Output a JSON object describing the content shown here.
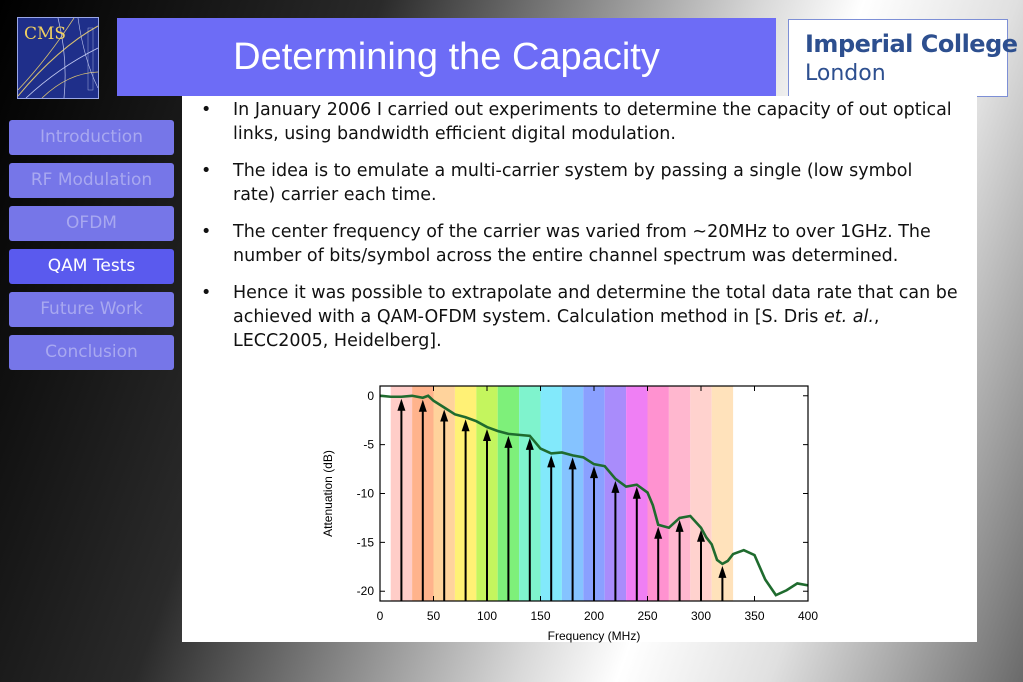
{
  "logos": {
    "cms_text": "CMS",
    "college_line1": "Imperial College",
    "college_line2": "London"
  },
  "slide": {
    "title": "Determining the Capacity",
    "bullet_glyph": "•",
    "bullets": [
      "In January 2006 I carried out experiments to determine the capacity of out optical links, using bandwidth efficient digital modulation.",
      "The idea is to emulate a multi-carrier system by passing a single (low symbol rate) carrier each time.",
      "The center frequency of the carrier was varied from ~20MHz to over 1GHz. The number of bits/symbol across the entire channel spectrum was determined."
    ],
    "last_bullet": {
      "before": "Hence it was possible to extrapolate and determine the total data rate that can be achieved with a QAM-OFDM system. Calculation method in [S. Dris ",
      "italic": "et. al.",
      "after": ", LECC2005, Heidelberg]."
    }
  },
  "nav": {
    "active": "QAM Tests",
    "items": [
      "Introduction",
      "RF Modulation",
      "OFDM",
      "QAM Tests",
      "Future Work",
      "Conclusion"
    ]
  },
  "chart_data": {
    "type": "line",
    "xlabel": "Frequency (MHz)",
    "ylabel": "Attenuation (dB)",
    "xlim": [
      0,
      400
    ],
    "ylim": [
      -21,
      1
    ],
    "xticks": [
      0,
      50,
      100,
      150,
      200,
      250,
      300,
      350,
      400
    ],
    "yticks": [
      0,
      -5,
      -10,
      -15,
      -20
    ],
    "line_color": "#1f6b2e",
    "series": [
      {
        "x": [
          0,
          10,
          20,
          30,
          40,
          45,
          50,
          60,
          70,
          80,
          90,
          100,
          110,
          120,
          130,
          140,
          150,
          160,
          170,
          180,
          190,
          200,
          210,
          220,
          230,
          240,
          250,
          255,
          260,
          270,
          280,
          290,
          300,
          305,
          310,
          315,
          320,
          325,
          330,
          340,
          350,
          360,
          370,
          380,
          390,
          400
        ],
        "y": [
          0,
          -0.1,
          -0.1,
          0,
          -0.2,
          0,
          -0.5,
          -1.2,
          -1.9,
          -2.2,
          -2.6,
          -3.2,
          -3.6,
          -3.9,
          -4.0,
          -4.1,
          -5.4,
          -5.9,
          -5.8,
          -6.1,
          -6.3,
          -7.0,
          -7.2,
          -8.5,
          -9.3,
          -9.1,
          -9.9,
          -11.2,
          -13.2,
          -13.5,
          -12.5,
          -12.3,
          -13.5,
          -14.5,
          -15.2,
          -16.8,
          -17.2,
          -16.9,
          -16.2,
          -15.8,
          -16.3,
          -18.8,
          -20.4,
          -19.9,
          -19.2,
          -19.4
        ]
      }
    ],
    "carrier_arrows_mhz": [
      20,
      40,
      60,
      80,
      100,
      120,
      140,
      160,
      180,
      200,
      220,
      240,
      260,
      280,
      300,
      320
    ],
    "bands": [
      {
        "x0": 10,
        "x1": 30,
        "color": "#ffcdc8"
      },
      {
        "x0": 30,
        "x1": 50,
        "color": "#ffb38c"
      },
      {
        "x0": 50,
        "x1": 70,
        "color": "#ffd39c"
      },
      {
        "x0": 70,
        "x1": 90,
        "color": "#fff175"
      },
      {
        "x0": 90,
        "x1": 110,
        "color": "#c4f55e"
      },
      {
        "x0": 110,
        "x1": 130,
        "color": "#7ef07a"
      },
      {
        "x0": 130,
        "x1": 150,
        "color": "#7ff3cd"
      },
      {
        "x0": 150,
        "x1": 170,
        "color": "#82e9fb"
      },
      {
        "x0": 170,
        "x1": 190,
        "color": "#85c3ff"
      },
      {
        "x0": 190,
        "x1": 210,
        "color": "#8aa0ff"
      },
      {
        "x0": 210,
        "x1": 230,
        "color": "#a98cfb"
      },
      {
        "x0": 230,
        "x1": 250,
        "color": "#ef7ff4"
      },
      {
        "x0": 250,
        "x1": 270,
        "color": "#ff92d0"
      },
      {
        "x0": 270,
        "x1": 290,
        "color": "#ffb7cf"
      },
      {
        "x0": 290,
        "x1": 310,
        "color": "#ffd2ce"
      },
      {
        "x0": 310,
        "x1": 330,
        "color": "#ffe2bb"
      }
    ]
  }
}
